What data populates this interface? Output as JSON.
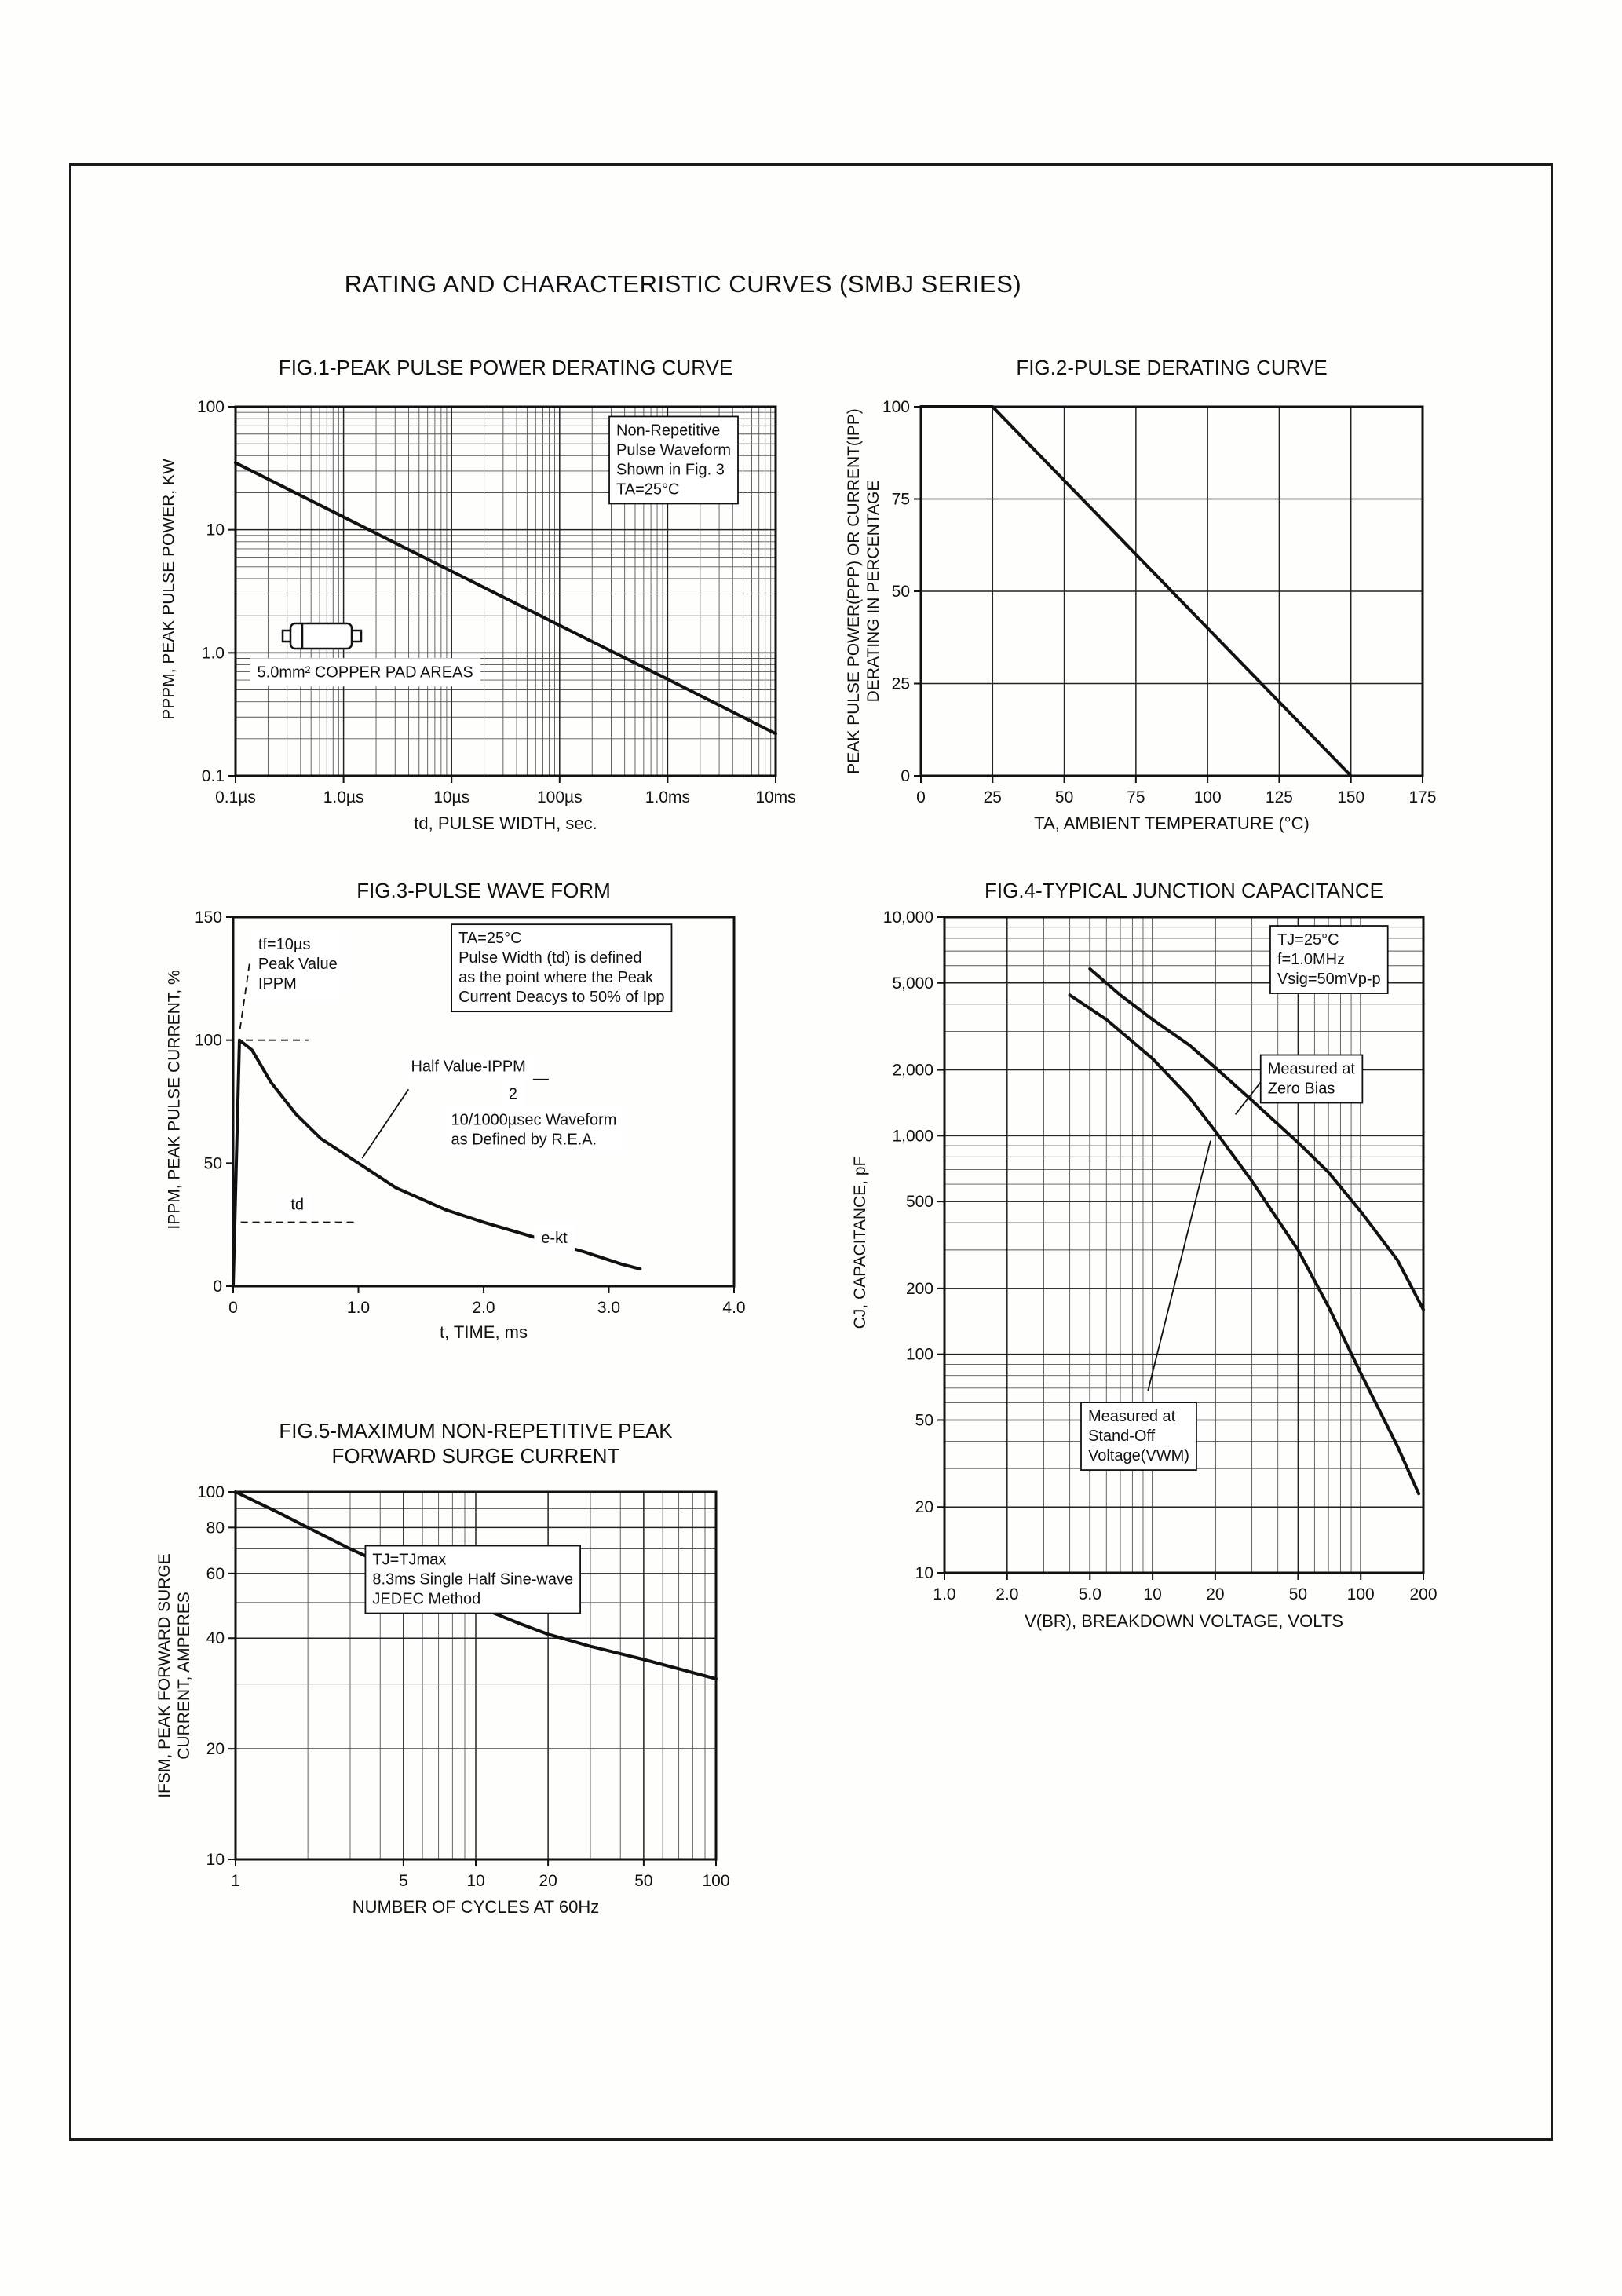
{
  "page": {
    "title": "RATING AND CHARACTERISTIC CURVES (SMBJ SERIES)"
  },
  "chart_data": [
    {
      "id": "fig1",
      "type": "line",
      "title": "FIG.1-PEAK PULSE POWER DERATING CURVE",
      "xlabel": "td, PULSE WIDTH, sec.",
      "ylabel": "PPPM, PEAK PULSE POWER, KW",
      "x_scale": "log",
      "y_scale": "log",
      "xlim": [
        1e-07,
        0.01
      ],
      "ylim": [
        0.1,
        100
      ],
      "x_ticks": [
        {
          "v": 1e-07,
          "l": "0.1µs"
        },
        {
          "v": 1e-06,
          "l": "1.0µs"
        },
        {
          "v": 1e-05,
          "l": "10µs"
        },
        {
          "v": 0.0001,
          "l": "100µs"
        },
        {
          "v": 0.001,
          "l": "1.0ms"
        },
        {
          "v": 0.01,
          "l": "10ms"
        }
      ],
      "y_ticks": [
        {
          "v": 100,
          "l": "100"
        },
        {
          "v": 10,
          "l": "10"
        },
        {
          "v": 1,
          "l": "1.0"
        },
        {
          "v": 0.1,
          "l": "0.1"
        }
      ],
      "grid": {
        "x_minor": "log",
        "y_minor": "log"
      },
      "series": [
        {
          "name": "peak-pulse-power",
          "points": [
            [
              1e-07,
              35
            ],
            [
              1e-06,
              12.7
            ],
            [
              1e-05,
              4.6
            ],
            [
              0.0001,
              1.67
            ],
            [
              0.001,
              0.61
            ],
            [
              0.01,
              0.22
            ]
          ]
        }
      ],
      "annotations": [
        {
          "name": "waveform-note",
          "box": true,
          "fx": 0.705,
          "fy": 0.035,
          "lines": [
            "Non-Repetitive",
            "Pulse Waveform",
            "Shown in Fig. 3",
            "TA=25°C"
          ]
        },
        {
          "name": "copper-pad-note",
          "box": false,
          "fx": 0.04,
          "fy": 0.69,
          "lines": [
            "5.0mm² COPPER PAD AREAS"
          ]
        }
      ]
    },
    {
      "id": "fig2",
      "type": "line",
      "title": "FIG.2-PULSE DERATING CURVE",
      "xlabel": "TA, AMBIENT TEMPERATURE (°C)",
      "ylabel": "PEAK PULSE POWER(PPP) OR CURRENT(IPP)\nDERATING IN PERCENTAGE",
      "x_scale": "linear",
      "y_scale": "linear",
      "xlim": [
        0,
        175
      ],
      "ylim": [
        0,
        100
      ],
      "x_ticks": [
        {
          "v": 0,
          "l": "0"
        },
        {
          "v": 25,
          "l": "25"
        },
        {
          "v": 50,
          "l": "50"
        },
        {
          "v": 75,
          "l": "75"
        },
        {
          "v": 100,
          "l": "100"
        },
        {
          "v": 125,
          "l": "125"
        },
        {
          "v": 150,
          "l": "150"
        },
        {
          "v": 175,
          "l": "175"
        }
      ],
      "y_ticks": [
        {
          "v": 100,
          "l": "100"
        },
        {
          "v": 75,
          "l": "75"
        },
        {
          "v": 50,
          "l": "50"
        },
        {
          "v": 25,
          "l": "25"
        },
        {
          "v": 0,
          "l": "0"
        }
      ],
      "grid": {
        "x_minor": null,
        "y_minor": null
      },
      "series": [
        {
          "name": "derating",
          "points": [
            [
              0,
              100
            ],
            [
              25,
              100
            ],
            [
              150,
              0
            ]
          ]
        }
      ],
      "annotations": []
    },
    {
      "id": "fig3",
      "type": "line",
      "title": "FIG.3-PULSE WAVE FORM",
      "xlabel": "t, TIME, ms",
      "ylabel": "IPPM, PEAK PULSE CURRENT, %",
      "x_scale": "linear",
      "y_scale": "linear",
      "xlim": [
        0,
        4
      ],
      "ylim": [
        0,
        150
      ],
      "x_ticks": [
        {
          "v": 0,
          "l": "0"
        },
        {
          "v": 1,
          "l": "1.0"
        },
        {
          "v": 2,
          "l": "2.0"
        },
        {
          "v": 3,
          "l": "3.0"
        },
        {
          "v": 4,
          "l": "4.0"
        }
      ],
      "y_ticks": [
        {
          "v": 150,
          "l": "150"
        },
        {
          "v": 100,
          "l": "100"
        },
        {
          "v": 50,
          "l": "50"
        },
        {
          "v": 0,
          "l": "0"
        }
      ],
      "series": [
        {
          "name": "pulse-waveform",
          "points": [
            [
              0,
              0
            ],
            [
              0.05,
              100
            ],
            [
              0.15,
              96
            ],
            [
              0.3,
              83
            ],
            [
              0.5,
              70
            ],
            [
              0.7,
              60
            ],
            [
              0.85,
              55
            ],
            [
              1.0,
              50
            ],
            [
              1.3,
              40
            ],
            [
              1.7,
              31
            ],
            [
              2.0,
              26
            ],
            [
              2.4,
              20
            ],
            [
              2.8,
              14
            ],
            [
              3.1,
              9
            ],
            [
              3.25,
              7
            ]
          ]
        }
      ],
      "guides": [
        {
          "pts": [
            [
              0.13,
              131
            ],
            [
              0.05,
              103
            ]
          ],
          "dash": true
        },
        {
          "pts": [
            [
              0.1,
              100
            ],
            [
              0.6,
              100
            ]
          ],
          "dash": true
        },
        {
          "pts": [
            [
              1.4,
              80
            ],
            [
              1.03,
              52
            ]
          ],
          "dash": false
        },
        {
          "pts": [
            [
              2.12,
              84
            ],
            [
              2.52,
              84
            ]
          ],
          "dash": false
        },
        {
          "pts": [
            [
              0.06,
              26
            ],
            [
              1.0,
              26
            ]
          ],
          "dash": true
        }
      ],
      "annotations": [
        {
          "name": "rise-time-note",
          "box": false,
          "fx": 0.05,
          "fy": 0.045,
          "lines": [
            "tf=10µs",
            "Peak Value",
            "IPPM"
          ]
        },
        {
          "name": "pulse-width-note",
          "box": true,
          "fx": 0.45,
          "fy": 0.028,
          "lines": [
            "TA=25°C",
            "Pulse Width (td) is defined",
            "as the point where the Peak",
            "Current Deacys to 50% of Ipp"
          ]
        },
        {
          "name": "half-value-label",
          "box": false,
          "fx": 0.355,
          "fy": 0.375,
          "lines": [
            "Half Value-IPPM"
          ]
        },
        {
          "name": "half-value-denominator",
          "box": false,
          "fx": 0.55,
          "fy": 0.45,
          "lines": [
            "2"
          ]
        },
        {
          "name": "rea-waveform-note",
          "box": false,
          "fx": 0.435,
          "fy": 0.52,
          "lines": [
            "10/1000µsec Waveform",
            "as Defined by R.E.A."
          ]
        },
        {
          "name": "pulse-width-label",
          "box": false,
          "fx": 0.115,
          "fy": 0.75,
          "lines": [
            "td"
          ]
        },
        {
          "name": "exp-decay-label",
          "box": false,
          "fx": 0.615,
          "fy": 0.84,
          "lines": [
            "e-kt"
          ]
        }
      ]
    },
    {
      "id": "fig4",
      "type": "line",
      "title": "FIG.4-TYPICAL JUNCTION CAPACITANCE",
      "xlabel": "V(BR), BREAKDOWN VOLTAGE, VOLTS",
      "ylabel": "CJ, CAPACITANCE, pF",
      "x_scale": "log",
      "y_scale": "log",
      "xlim": [
        1,
        200
      ],
      "ylim": [
        10,
        10000
      ],
      "x_ticks": [
        {
          "v": 1,
          "l": "1.0"
        },
        {
          "v": 2,
          "l": "2.0"
        },
        {
          "v": 5,
          "l": "5.0"
        },
        {
          "v": 10,
          "l": "10"
        },
        {
          "v": 20,
          "l": "20"
        },
        {
          "v": 50,
          "l": "50"
        },
        {
          "v": 100,
          "l": "100"
        },
        {
          "v": 200,
          "l": "200"
        }
      ],
      "y_ticks": [
        {
          "v": 10000,
          "l": "10,000"
        },
        {
          "v": 5000,
          "l": "5,000"
        },
        {
          "v": 2000,
          "l": "2,000"
        },
        {
          "v": 1000,
          "l": "1,000"
        },
        {
          "v": 500,
          "l": "500"
        },
        {
          "v": 200,
          "l": "200"
        },
        {
          "v": 100,
          "l": "100"
        },
        {
          "v": 50,
          "l": "50"
        },
        {
          "v": 20,
          "l": "20"
        },
        {
          "v": 10,
          "l": "10"
        }
      ],
      "grid": {
        "x_minor": "log",
        "y_minor": "log"
      },
      "series": [
        {
          "name": "measured-at-zero-bias",
          "points": [
            [
              5,
              5800
            ],
            [
              7,
              4400
            ],
            [
              10,
              3400
            ],
            [
              15,
              2600
            ],
            [
              20,
              2050
            ],
            [
              30,
              1450
            ],
            [
              50,
              930
            ],
            [
              70,
              680
            ],
            [
              100,
              450
            ],
            [
              150,
              270
            ],
            [
              200,
              160
            ]
          ]
        },
        {
          "name": "measured-at-stand-off-voltage",
          "points": [
            [
              4,
              4400
            ],
            [
              6,
              3400
            ],
            [
              10,
              2250
            ],
            [
              15,
              1500
            ],
            [
              20,
              1050
            ],
            [
              30,
              620
            ],
            [
              50,
              300
            ],
            [
              70,
              165
            ],
            [
              100,
              82
            ],
            [
              150,
              38
            ],
            [
              190,
              23
            ]
          ]
        }
      ],
      "guides": [
        {
          "pts": [
            [
              36,
              1950
            ],
            [
              25,
              1250
            ]
          ],
          "dash": false
        },
        {
          "pts": [
            [
              9.5,
              68
            ],
            [
              19,
              950
            ]
          ],
          "dash": false
        }
      ],
      "annotations": [
        {
          "name": "conditions-note",
          "box": true,
          "fx": 0.695,
          "fy": 0.018,
          "lines": [
            "TJ=25°C",
            "f=1.0MHz",
            "Vsig=50mVp-p"
          ]
        },
        {
          "name": "zero-bias-label",
          "box": true,
          "fx": 0.675,
          "fy": 0.215,
          "lines": [
            "Measured at",
            "Zero Bias"
          ]
        },
        {
          "name": "stand-off-label",
          "box": true,
          "fx": 0.3,
          "fy": 0.745,
          "lines": [
            "Measured at",
            "Stand-Off",
            "Voltage(VWM)"
          ]
        }
      ]
    },
    {
      "id": "fig5",
      "type": "line",
      "title": "FIG.5-MAXIMUM NON-REPETITIVE PEAK\nFORWARD SURGE CURRENT",
      "xlabel": "NUMBER OF CYCLES AT 60Hz",
      "ylabel": "IFSM, PEAK FORWARD SURGE\nCURRENT, AMPERES",
      "x_scale": "log",
      "y_scale": "log",
      "xlim": [
        1,
        100
      ],
      "ylim": [
        10,
        100
      ],
      "x_ticks": [
        {
          "v": 1,
          "l": "1"
        },
        {
          "v": 5,
          "l": "5"
        },
        {
          "v": 10,
          "l": "10"
        },
        {
          "v": 20,
          "l": "20"
        },
        {
          "v": 50,
          "l": "50"
        },
        {
          "v": 100,
          "l": "100"
        }
      ],
      "y_ticks": [
        {
          "v": 100,
          "l": "100"
        },
        {
          "v": 80,
          "l": "80"
        },
        {
          "v": 60,
          "l": "60"
        },
        {
          "v": 40,
          "l": "40"
        },
        {
          "v": 20,
          "l": "20"
        },
        {
          "v": 10,
          "l": "10"
        }
      ],
      "grid": {
        "x_minor": "log",
        "y_minor": [
          30,
          50,
          70,
          90
        ]
      },
      "series": [
        {
          "name": "surge-current",
          "points": [
            [
              1,
              100
            ],
            [
              1.5,
              88
            ],
            [
              2,
              80
            ],
            [
              3,
              70
            ],
            [
              5,
              60
            ],
            [
              7,
              54
            ],
            [
              10,
              49
            ],
            [
              15,
              44
            ],
            [
              20,
              41
            ],
            [
              30,
              38
            ],
            [
              50,
              35
            ],
            [
              70,
              33
            ],
            [
              100,
              31
            ]
          ]
        }
      ],
      "annotations": [
        {
          "name": "conditions-note",
          "box": true,
          "fx": 0.285,
          "fy": 0.155,
          "lines": [
            "TJ=TJmax",
            "8.3ms Single Half Sine-wave",
            "JEDEC Method"
          ]
        }
      ]
    }
  ]
}
